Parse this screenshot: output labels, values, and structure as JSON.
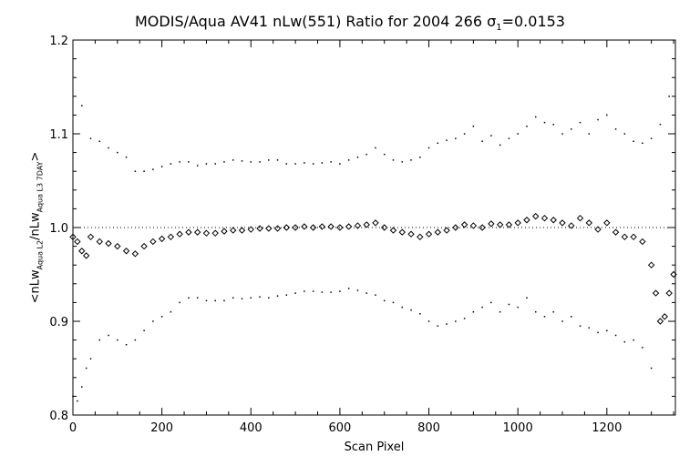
{
  "chart_data": {
    "type": "scatter",
    "title_prefix": "MODIS/Aqua AV41 nLw(551) Ratio for 2004 266 ",
    "title_sigma": "σ",
    "title_sigma_sub": "1",
    "title_suffix": "=0.0153",
    "xlabel": "Scan Pixel",
    "ylabel": {
      "part1": "<nLw",
      "sub1": "Aqua L2",
      "part2": "/nLw",
      "sub2": "Aqua L3 7DAY",
      "part3": ">"
    },
    "xlim": [
      0,
      1354
    ],
    "ylim": [
      0.8,
      1.2
    ],
    "x_ticks": [
      "0",
      "200",
      "400",
      "600",
      "800",
      "1000",
      "1200"
    ],
    "y_ticks": [
      "0.8",
      "0.9",
      "1.0",
      "1.1",
      "1.2"
    ],
    "reference_line": 1.0,
    "series": [
      {
        "style": "diamond",
        "x": [
          0,
          10,
          20,
          30,
          40,
          60,
          80,
          100,
          120,
          140,
          160,
          180,
          200,
          220,
          240,
          260,
          280,
          300,
          320,
          340,
          360,
          380,
          400,
          420,
          440,
          460,
          480,
          500,
          520,
          540,
          560,
          580,
          600,
          620,
          640,
          660,
          680,
          700,
          720,
          740,
          760,
          780,
          800,
          820,
          840,
          860,
          880,
          900,
          920,
          940,
          960,
          980,
          1000,
          1020,
          1040,
          1060,
          1080,
          1100,
          1120,
          1140,
          1160,
          1180,
          1200,
          1220,
          1240,
          1260,
          1280,
          1300,
          1310,
          1320,
          1330,
          1340,
          1350
        ],
        "y": [
          0.99,
          0.985,
          0.975,
          0.97,
          0.99,
          0.985,
          0.983,
          0.98,
          0.975,
          0.972,
          0.98,
          0.985,
          0.988,
          0.99,
          0.993,
          0.995,
          0.995,
          0.994,
          0.994,
          0.996,
          0.997,
          0.997,
          0.998,
          0.999,
          0.999,
          0.999,
          1.0,
          1.0,
          1.001,
          1.0,
          1.001,
          1.001,
          1.0,
          1.001,
          1.002,
          1.003,
          1.005,
          1.0,
          0.997,
          0.995,
          0.993,
          0.99,
          0.993,
          0.995,
          0.997,
          1.0,
          1.003,
          1.002,
          1.0,
          1.004,
          1.003,
          1.003,
          1.005,
          1.008,
          1.012,
          1.01,
          1.008,
          1.005,
          1.002,
          1.01,
          1.005,
          0.998,
          1.005,
          0.995,
          0.99,
          0.99,
          0.985,
          0.96,
          0.93,
          0.9,
          0.905,
          0.93,
          0.95
        ]
      },
      {
        "style": "dots-upper",
        "x": [
          20,
          40,
          60,
          80,
          100,
          120,
          140,
          160,
          180,
          200,
          220,
          240,
          260,
          280,
          300,
          320,
          340,
          360,
          380,
          400,
          420,
          440,
          460,
          480,
          500,
          520,
          540,
          560,
          580,
          600,
          620,
          640,
          660,
          680,
          700,
          720,
          740,
          760,
          780,
          800,
          820,
          840,
          860,
          880,
          900,
          920,
          940,
          960,
          980,
          1000,
          1020,
          1040,
          1060,
          1080,
          1100,
          1120,
          1140,
          1160,
          1180,
          1200,
          1220,
          1240,
          1260,
          1280,
          1300,
          1320,
          1340
        ],
        "y": [
          1.13,
          1.095,
          1.092,
          1.085,
          1.08,
          1.075,
          1.06,
          1.06,
          1.062,
          1.065,
          1.068,
          1.07,
          1.07,
          1.066,
          1.068,
          1.068,
          1.07,
          1.072,
          1.071,
          1.07,
          1.07,
          1.072,
          1.072,
          1.068,
          1.068,
          1.069,
          1.068,
          1.069,
          1.07,
          1.068,
          1.072,
          1.075,
          1.078,
          1.085,
          1.078,
          1.072,
          1.07,
          1.072,
          1.075,
          1.085,
          1.09,
          1.093,
          1.095,
          1.1,
          1.108,
          1.092,
          1.098,
          1.088,
          1.095,
          1.1,
          1.108,
          1.118,
          1.112,
          1.11,
          1.1,
          1.105,
          1.112,
          1.1,
          1.115,
          1.12,
          1.105,
          1.1,
          1.092,
          1.09,
          1.095,
          1.11,
          1.14
        ]
      },
      {
        "style": "dots-lower",
        "x": [
          0,
          10,
          20,
          30,
          40,
          60,
          80,
          100,
          120,
          140,
          160,
          180,
          200,
          220,
          240,
          260,
          280,
          300,
          320,
          340,
          360,
          380,
          400,
          420,
          440,
          460,
          480,
          500,
          520,
          540,
          560,
          580,
          600,
          620,
          640,
          660,
          680,
          700,
          720,
          740,
          760,
          780,
          800,
          820,
          840,
          860,
          880,
          900,
          920,
          940,
          960,
          980,
          1000,
          1020,
          1040,
          1060,
          1080,
          1100,
          1120,
          1140,
          1160,
          1180,
          1200,
          1220,
          1240,
          1260,
          1280,
          1300
        ],
        "y": [
          0.82,
          0.815,
          0.83,
          0.85,
          0.86,
          0.88,
          0.885,
          0.88,
          0.875,
          0.88,
          0.89,
          0.9,
          0.905,
          0.91,
          0.92,
          0.925,
          0.925,
          0.922,
          0.922,
          0.922,
          0.925,
          0.924,
          0.925,
          0.926,
          0.925,
          0.927,
          0.928,
          0.93,
          0.932,
          0.932,
          0.931,
          0.931,
          0.932,
          0.935,
          0.933,
          0.93,
          0.928,
          0.922,
          0.92,
          0.915,
          0.912,
          0.908,
          0.9,
          0.895,
          0.897,
          0.9,
          0.903,
          0.91,
          0.915,
          0.92,
          0.91,
          0.918,
          0.915,
          0.925,
          0.91,
          0.905,
          0.91,
          0.9,
          0.905,
          0.895,
          0.893,
          0.888,
          0.89,
          0.885,
          0.878,
          0.88,
          0.872,
          0.85
        ]
      }
    ]
  }
}
